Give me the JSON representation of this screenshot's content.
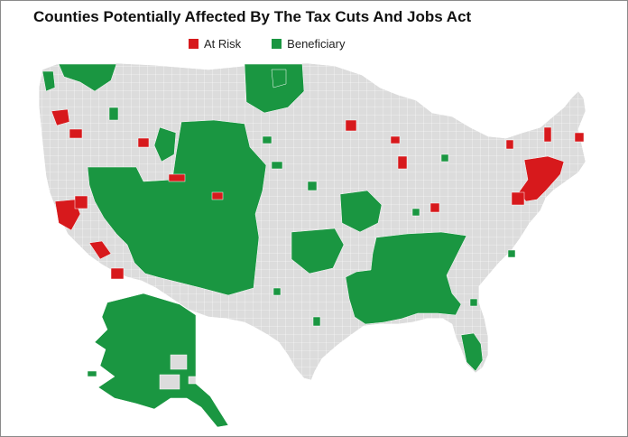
{
  "title": "Counties Potentially Affected By The Tax Cuts And Jobs Act",
  "legend": [
    {
      "label": "At Risk",
      "color": "#d7191c"
    },
    {
      "label": "Beneficiary",
      "color": "#1a9641"
    }
  ],
  "colors": {
    "at_risk": "#d7191c",
    "beneficiary": "#1a9641",
    "neutral": "#dcdcdc",
    "county_border": "#ffffff"
  }
}
